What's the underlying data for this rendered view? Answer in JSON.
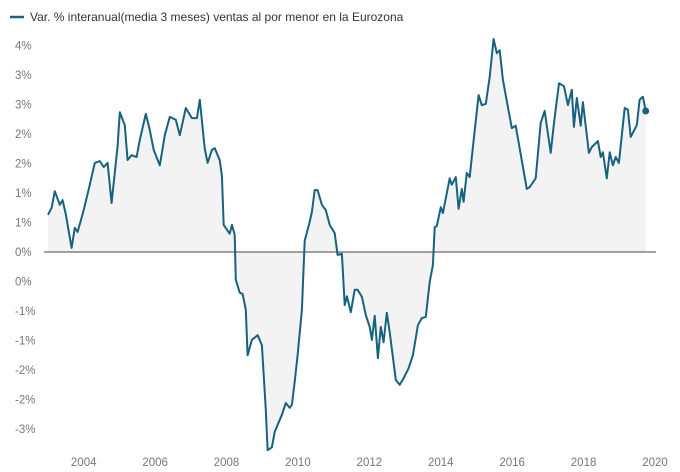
{
  "chart_data": {
    "type": "area",
    "title": "",
    "legend": {
      "label": "Var. % interanual(media 3 meses) ventas al por menor en la Eurozona",
      "placement": "top-left"
    },
    "xlabel": "",
    "ylabel": "",
    "xlim": [
      2003,
      2020
    ],
    "ylim": [
      -3.3,
      3.8
    ],
    "x_ticks": [
      {
        "value": 2004,
        "label": "2004"
      },
      {
        "value": 2006,
        "label": "2006"
      },
      {
        "value": 2008,
        "label": "2008"
      },
      {
        "value": 2010,
        "label": "2010"
      },
      {
        "value": 2012,
        "label": "2012"
      },
      {
        "value": 2014,
        "label": "2014"
      },
      {
        "value": 2016,
        "label": "2016"
      },
      {
        "value": 2018,
        "label": "2018"
      },
      {
        "value": 2020,
        "label": "2020"
      }
    ],
    "y_ticks": [
      {
        "value": 3.5,
        "label": "4%"
      },
      {
        "value": 3.0,
        "label": "3%"
      },
      {
        "value": 2.5,
        "label": "3%"
      },
      {
        "value": 2.0,
        "label": "2%"
      },
      {
        "value": 1.5,
        "label": "2%"
      },
      {
        "value": 1.0,
        "label": "1%"
      },
      {
        "value": 0.5,
        "label": "1%"
      },
      {
        "value": 0.0,
        "label": "0%"
      },
      {
        "value": -0.5,
        "label": "0%"
      },
      {
        "value": -1.0,
        "label": "-1%"
      },
      {
        "value": -1.5,
        "label": "-1%"
      },
      {
        "value": -2.0,
        "label": "-2%"
      },
      {
        "value": -2.5,
        "label": "-2%"
      },
      {
        "value": -3.0,
        "label": "-3%"
      }
    ],
    "grid": false,
    "colors": {
      "line": "#17627f",
      "fill": "#f3f3f3",
      "zero_line": "#444444"
    },
    "series": [
      {
        "name": "Var. % interanual(media 3 meses) ventas al por menor en la Eurozona",
        "points": [
          [
            2003.0,
            0.63
          ],
          [
            2003.1,
            0.75
          ],
          [
            2003.19,
            1.03
          ],
          [
            2003.33,
            0.8
          ],
          [
            2003.41,
            0.88
          ],
          [
            2003.5,
            0.63
          ],
          [
            2003.66,
            0.07
          ],
          [
            2003.75,
            0.41
          ],
          [
            2003.83,
            0.34
          ],
          [
            2004.0,
            0.71
          ],
          [
            2004.17,
            1.14
          ],
          [
            2004.31,
            1.51
          ],
          [
            2004.45,
            1.54
          ],
          [
            2004.56,
            1.44
          ],
          [
            2004.67,
            1.51
          ],
          [
            2004.78,
            0.83
          ],
          [
            2004.95,
            1.8
          ],
          [
            2005.01,
            2.37
          ],
          [
            2005.15,
            2.15
          ],
          [
            2005.23,
            1.56
          ],
          [
            2005.34,
            1.64
          ],
          [
            2005.48,
            1.61
          ],
          [
            2005.57,
            1.9
          ],
          [
            2005.74,
            2.34
          ],
          [
            2005.85,
            2.07
          ],
          [
            2005.96,
            1.73
          ],
          [
            2006.13,
            1.47
          ],
          [
            2006.27,
            1.98
          ],
          [
            2006.41,
            2.29
          ],
          [
            2006.58,
            2.24
          ],
          [
            2006.69,
            1.98
          ],
          [
            2006.86,
            2.44
          ],
          [
            2007.03,
            2.27
          ],
          [
            2007.17,
            2.27
          ],
          [
            2007.25,
            2.58
          ],
          [
            2007.39,
            1.76
          ],
          [
            2007.47,
            1.51
          ],
          [
            2007.59,
            1.73
          ],
          [
            2007.67,
            1.76
          ],
          [
            2007.81,
            1.56
          ],
          [
            2007.87,
            1.29
          ],
          [
            2007.92,
            0.46
          ],
          [
            2008.09,
            0.31
          ],
          [
            2008.15,
            0.46
          ],
          [
            2008.23,
            0.29
          ],
          [
            2008.26,
            -0.47
          ],
          [
            2008.37,
            -0.69
          ],
          [
            2008.45,
            -0.71
          ],
          [
            2008.54,
            -0.98
          ],
          [
            2008.59,
            -1.75
          ],
          [
            2008.71,
            -1.49
          ],
          [
            2008.87,
            -1.41
          ],
          [
            2008.99,
            -1.58
          ],
          [
            2009.1,
            -2.68
          ],
          [
            2009.15,
            -3.36
          ],
          [
            2009.27,
            -3.31
          ],
          [
            2009.35,
            -3.05
          ],
          [
            2009.55,
            -2.76
          ],
          [
            2009.66,
            -2.56
          ],
          [
            2009.77,
            -2.64
          ],
          [
            2009.83,
            -2.59
          ],
          [
            2009.91,
            -2.2
          ],
          [
            2009.99,
            -1.75
          ],
          [
            2010.11,
            -0.98
          ],
          [
            2010.19,
            0.19
          ],
          [
            2010.33,
            0.51
          ],
          [
            2010.39,
            0.68
          ],
          [
            2010.47,
            1.05
          ],
          [
            2010.55,
            1.05
          ],
          [
            2010.67,
            0.8
          ],
          [
            2010.78,
            0.71
          ],
          [
            2010.89,
            0.46
          ],
          [
            2011.03,
            0.32
          ],
          [
            2011.11,
            -0.05
          ],
          [
            2011.23,
            -0.03
          ],
          [
            2011.31,
            -0.9
          ],
          [
            2011.37,
            -0.75
          ],
          [
            2011.48,
            -1.02
          ],
          [
            2011.59,
            -0.64
          ],
          [
            2011.67,
            -0.64
          ],
          [
            2011.79,
            -0.76
          ],
          [
            2011.9,
            -1.07
          ],
          [
            2012.01,
            -1.27
          ],
          [
            2012.07,
            -1.49
          ],
          [
            2012.15,
            -1.08
          ],
          [
            2012.24,
            -1.8
          ],
          [
            2012.32,
            -1.27
          ],
          [
            2012.4,
            -1.53
          ],
          [
            2012.49,
            -1.03
          ],
          [
            2012.57,
            -1.36
          ],
          [
            2012.74,
            -2.17
          ],
          [
            2012.85,
            -2.25
          ],
          [
            2012.96,
            -2.14
          ],
          [
            2013.1,
            -1.97
          ],
          [
            2013.22,
            -1.75
          ],
          [
            2013.36,
            -1.24
          ],
          [
            2013.47,
            -1.12
          ],
          [
            2013.58,
            -1.1
          ],
          [
            2013.69,
            -0.51
          ],
          [
            2013.78,
            -0.22
          ],
          [
            2013.83,
            0.42
          ],
          [
            2013.89,
            0.44
          ],
          [
            2014.0,
            0.76
          ],
          [
            2014.06,
            0.66
          ],
          [
            2014.25,
            1.25
          ],
          [
            2014.31,
            1.14
          ],
          [
            2014.42,
            1.27
          ],
          [
            2014.5,
            0.73
          ],
          [
            2014.59,
            1.07
          ],
          [
            2014.64,
            0.85
          ],
          [
            2014.73,
            1.34
          ],
          [
            2014.81,
            1.27
          ],
          [
            2014.9,
            1.78
          ],
          [
            2015.06,
            2.66
          ],
          [
            2015.15,
            2.49
          ],
          [
            2015.26,
            2.51
          ],
          [
            2015.37,
            2.97
          ],
          [
            2015.48,
            3.61
          ],
          [
            2015.57,
            3.37
          ],
          [
            2015.65,
            3.42
          ],
          [
            2015.74,
            2.92
          ],
          [
            2015.99,
            2.1
          ],
          [
            2016.1,
            2.14
          ],
          [
            2016.41,
            1.07
          ],
          [
            2016.49,
            1.1
          ],
          [
            2016.66,
            1.25
          ],
          [
            2016.8,
            2.19
          ],
          [
            2016.91,
            2.39
          ],
          [
            2017.08,
            1.68
          ],
          [
            2017.17,
            2.19
          ],
          [
            2017.31,
            2.86
          ],
          [
            2017.45,
            2.81
          ],
          [
            2017.56,
            2.49
          ],
          [
            2017.67,
            2.75
          ],
          [
            2017.73,
            2.12
          ],
          [
            2017.81,
            2.61
          ],
          [
            2017.92,
            2.14
          ],
          [
            2017.98,
            2.54
          ],
          [
            2018.15,
            1.68
          ],
          [
            2018.23,
            1.78
          ],
          [
            2018.4,
            1.88
          ],
          [
            2018.48,
            1.61
          ],
          [
            2018.54,
            1.69
          ],
          [
            2018.65,
            1.25
          ],
          [
            2018.73,
            1.69
          ],
          [
            2018.82,
            1.47
          ],
          [
            2018.9,
            1.61
          ],
          [
            2018.99,
            1.51
          ],
          [
            2019.15,
            2.44
          ],
          [
            2019.24,
            2.41
          ],
          [
            2019.32,
            1.95
          ],
          [
            2019.49,
            2.15
          ],
          [
            2019.57,
            2.58
          ],
          [
            2019.66,
            2.63
          ],
          [
            2019.74,
            2.39
          ]
        ]
      }
    ]
  }
}
